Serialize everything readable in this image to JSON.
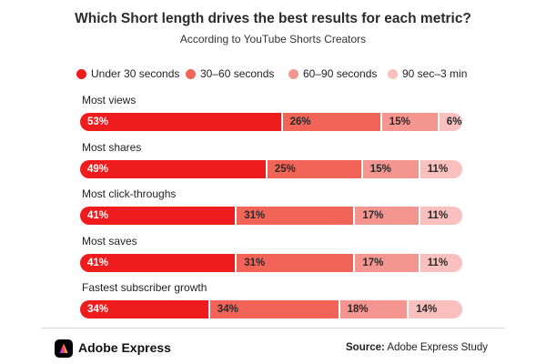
{
  "header": {
    "title": "Which Short length drives the best results for each metric?",
    "subtitle": "According to YouTube Shorts Creators"
  },
  "colors": {
    "under_30": "#ee1c1c",
    "s30_60": "#f26358",
    "s60_90": "#f59590",
    "s90_180": "#f9c0bd"
  },
  "chart_data": {
    "type": "bar",
    "orientation": "horizontal",
    "stacked": true,
    "title": "Which Short length drives the best results for each metric?",
    "subtitle": "According to YouTube Shorts Creators",
    "legend_position": "top",
    "value_suffix": "%",
    "categories": [
      "Most views",
      "Most shares",
      "Most click-throughs",
      "Most saves",
      "Fastest subscriber growth"
    ],
    "series": [
      {
        "name": "Under 30 seconds",
        "color": "#ee1c1c",
        "label_color": "#ffffff",
        "values": [
          53,
          49,
          41,
          41,
          34
        ]
      },
      {
        "name": "30–60 seconds",
        "color": "#f26358",
        "label_color": "#2a2a2a",
        "values": [
          26,
          25,
          31,
          31,
          34
        ]
      },
      {
        "name": "60–90 seconds",
        "color": "#f59590",
        "label_color": "#2a2a2a",
        "values": [
          15,
          15,
          17,
          17,
          18
        ]
      },
      {
        "name": "90 sec–3 min",
        "color": "#f9c0bd",
        "label_color": "#2a2a2a",
        "values": [
          6,
          11,
          11,
          11,
          14
        ]
      }
    ]
  },
  "footer": {
    "brand": "Adobe Express",
    "source_label": "Source:",
    "source_text": "Adobe Express Study"
  }
}
